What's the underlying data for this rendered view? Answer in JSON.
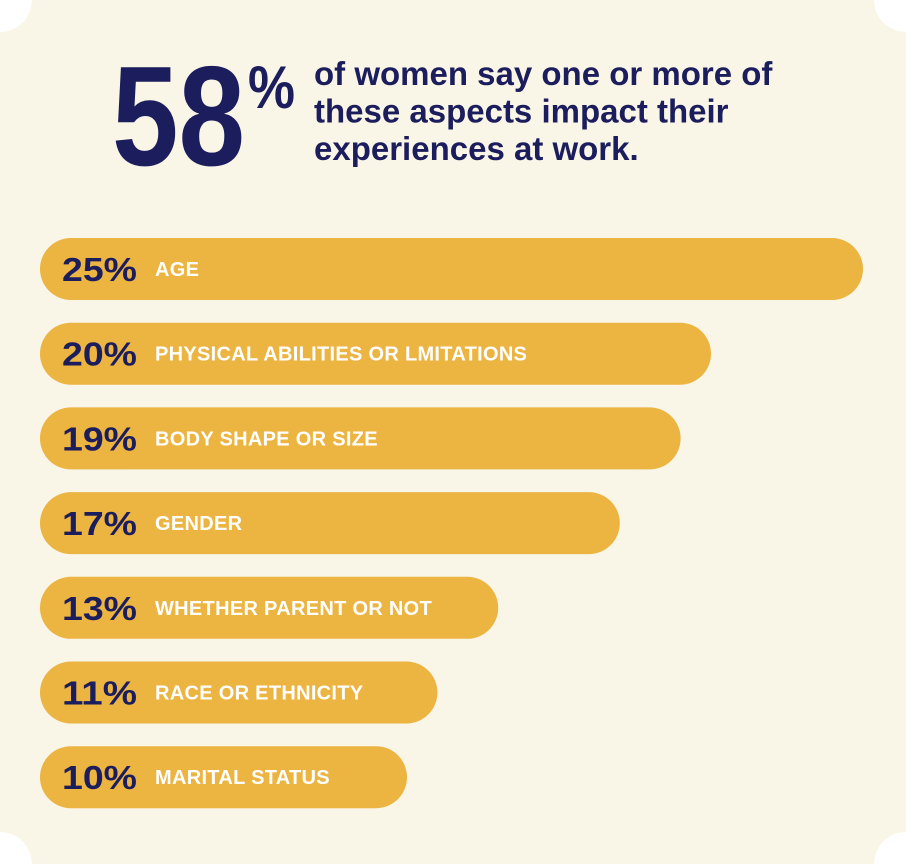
{
  "chart_data": {
    "type": "bar",
    "orientation": "horizontal",
    "headline_value": 58,
    "headline_symbol": "%",
    "headline_lines": [
      "of women say one or more of",
      "these aspects impact their",
      "experiences at work."
    ],
    "categories": [
      "AGE",
      "PHYSICAL ABILITIES OR LMITATIONS",
      "BODY SHAPE OR SIZE",
      "GENDER",
      "WHETHER PARENT OR NOT",
      "RACE OR ETHNICITY",
      "MARITAL STATUS"
    ],
    "values": [
      25,
      20,
      19,
      17,
      13,
      11,
      10
    ],
    "value_labels": [
      "25%",
      "20%",
      "19%",
      "17%",
      "13%",
      "11%",
      "10%"
    ],
    "color": "#ecb441"
  }
}
